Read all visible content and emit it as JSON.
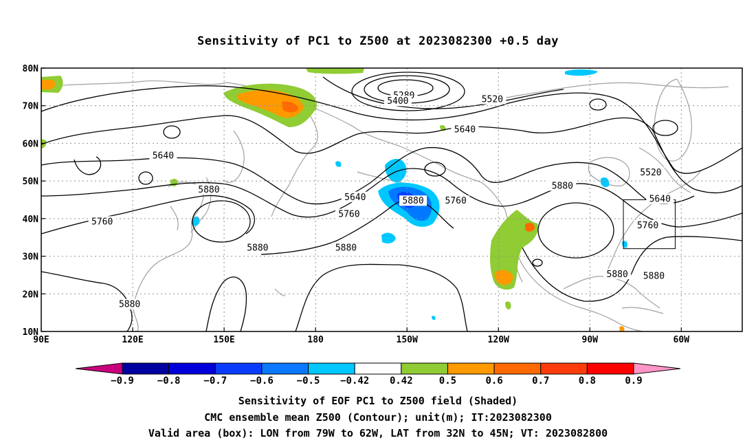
{
  "title": "Sensitivity of PC1 to Z500 at 2023082300 +0.5 day",
  "map": {
    "lat_labels": [
      "80N",
      "70N",
      "60N",
      "50N",
      "40N",
      "30N",
      "20N",
      "10N"
    ],
    "lat_values": [
      80,
      70,
      60,
      50,
      40,
      30,
      20,
      10
    ],
    "lon_labels": [
      "90E",
      "120E",
      "150E",
      "180",
      "150W",
      "120W",
      "90W",
      "60W"
    ],
    "lon_values": [
      90,
      120,
      150,
      180,
      210,
      240,
      270,
      300
    ],
    "lon_range": [
      90,
      320
    ],
    "lat_range": [
      10,
      80
    ],
    "contour_labels": [
      {
        "text": "5280",
        "lon": 209,
        "lat": 72.5
      },
      {
        "text": "5400",
        "lon": 207,
        "lat": 71
      },
      {
        "text": "5520",
        "lon": 238,
        "lat": 71.5
      },
      {
        "text": "5640",
        "lon": 229,
        "lat": 63.5
      },
      {
        "text": "5640",
        "lon": 130,
        "lat": 56.5
      },
      {
        "text": "5520",
        "lon": 290,
        "lat": 52
      },
      {
        "text": "5880",
        "lon": 145,
        "lat": 47.5
      },
      {
        "text": "5880",
        "lon": 261,
        "lat": 48.5
      },
      {
        "text": "5640",
        "lon": 293,
        "lat": 45
      },
      {
        "text": "5640",
        "lon": 193,
        "lat": 45.5
      },
      {
        "text": "5880",
        "lon": 212,
        "lat": 44.5
      },
      {
        "text": "5760",
        "lon": 226,
        "lat": 44.5
      },
      {
        "text": "5760",
        "lon": 191,
        "lat": 41
      },
      {
        "text": "5760",
        "lon": 110,
        "lat": 39
      },
      {
        "text": "5760",
        "lon": 289,
        "lat": 38
      },
      {
        "text": "5880",
        "lon": 161,
        "lat": 32
      },
      {
        "text": "5880",
        "lon": 190,
        "lat": 32
      },
      {
        "text": "5880",
        "lon": 279,
        "lat": 25
      },
      {
        "text": "5880",
        "lon": 291,
        "lat": 24.5
      },
      {
        "text": "5880",
        "lon": 119,
        "lat": 17
      }
    ],
    "valid_box": {
      "lon_min": 281,
      "lon_max": 298,
      "lat_min": 32,
      "lat_max": 45
    },
    "colors": {
      "contour": "#000000",
      "coast": "#a0a0a0",
      "grid": "#909090",
      "green": "#90cc33",
      "orange": "#ff9900",
      "dark_orange": "#ff6a00",
      "light_blue": "#00c8ff",
      "mid_blue": "#0078ff",
      "blue": "#0040ff"
    }
  },
  "colorbar": {
    "labels": [
      "-0.9",
      "-0.8",
      "-0.7",
      "-0.6",
      "-0.5",
      "-0.42",
      "0.42",
      "0.5",
      "0.6",
      "0.7",
      "0.8",
      "0.9"
    ],
    "colors": [
      "#0000a0",
      "#0000dc",
      "#0a3cff",
      "#0a78ff",
      "#00c8ff",
      "#ffffff",
      "#90cc33",
      "#ff9900",
      "#ff6a00",
      "#ff3c0a",
      "#ff0000"
    ],
    "low_end_color": "#c8007c",
    "high_end_color": "#ff96c8"
  },
  "captions": {
    "line1": "Sensitivity of EOF PC1 to Z500 field (Shaded)",
    "line2": "CMC ensemble mean Z500 (Contour); unit(m); IT:2023082300",
    "line3": "Valid area (box): LON from 79W to 62W, LAT from 32N to 45N; VT: 2023082800"
  }
}
